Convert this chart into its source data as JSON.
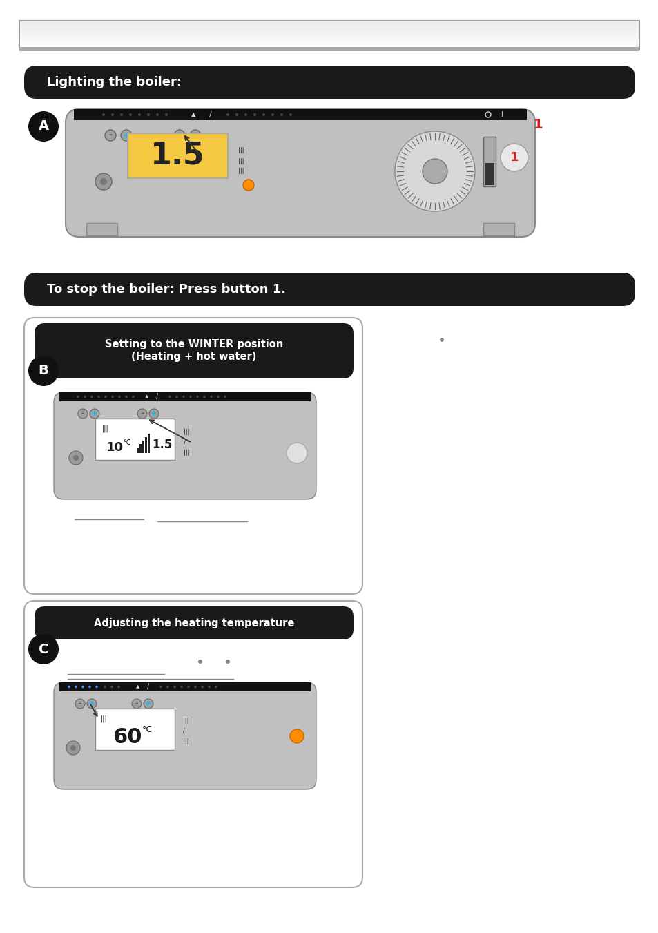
{
  "bg_color": "#ffffff",
  "section_bg": "#1a1a1a",
  "section_text_color": "#ffffff",
  "label_A": "A",
  "label_B": "B",
  "label_C": "C",
  "title_bar": "Lighting the boiler:",
  "stop_bar": "To stop the boiler: Press button 1.",
  "winter_bar_line1": "Setting to the WINTER position",
  "winter_bar_line2": "(Heating + hot water)",
  "heat_bar": "Adjusting the heating temperature",
  "display_color_A": "#f5c842",
  "display_text_A": "1.5",
  "display_text_B_val": "1.5",
  "display_text_C": "60",
  "panel_bg": "#c0c0c0",
  "dot_blue": "#00bfff",
  "dot_orange": "#ff8c00",
  "dot_highlight": "#4488ff",
  "arrow_color": "#333333",
  "red_label": "#cc2222"
}
